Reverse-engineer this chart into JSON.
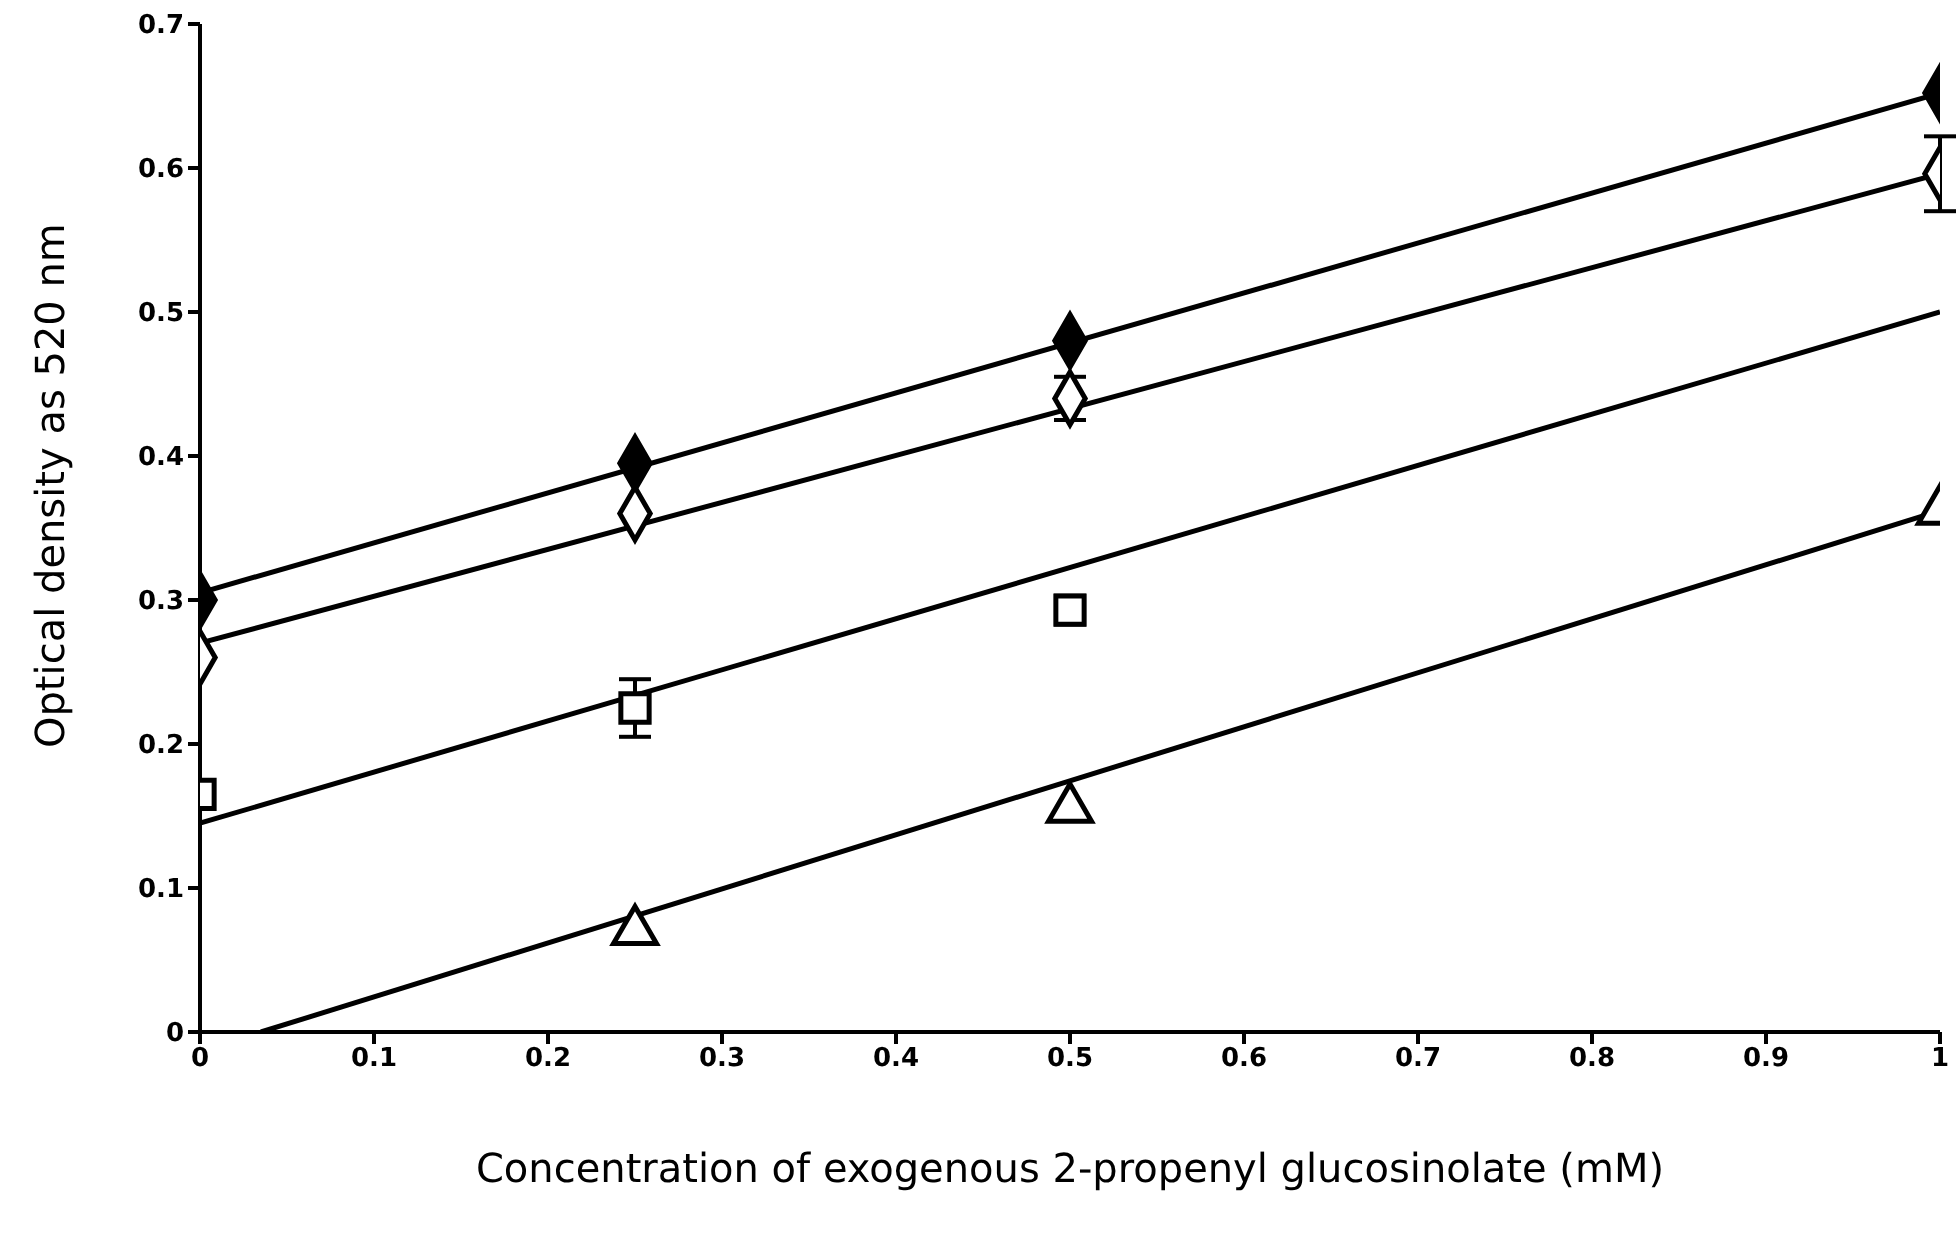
{
  "chart_data": {
    "type": "scatter",
    "xlabel": "Concentration of exogenous 2-propenyl glucosinolate (mM)",
    "ylabel": "Optical density as 520 nm",
    "xlim": [
      0,
      1
    ],
    "ylim": [
      0,
      0.7
    ],
    "xticks": [
      0,
      0.1,
      0.2,
      0.3,
      0.4,
      0.5,
      0.6,
      0.7,
      0.8,
      0.9,
      1
    ],
    "yticks": [
      0,
      0.1,
      0.2,
      0.3,
      0.4,
      0.5,
      0.6,
      0.7
    ],
    "grid": false,
    "legend": false,
    "series": [
      {
        "marker": "diamond",
        "color": "#000000",
        "x": [
          0,
          0.25,
          0.5,
          1
        ],
        "values": [
          0.3,
          0.395,
          0.48,
          0.652
        ]
      },
      {
        "marker": "diamond",
        "color": "#000000",
        "x": [
          0,
          0.25,
          0.5,
          1
        ],
        "values": [
          0.26,
          0.36,
          0.44,
          0.596
        ],
        "errors": [
          null,
          null,
          0.015,
          0.026
        ]
      },
      {
        "marker": "square",
        "color": "#000000",
        "x": [
          0,
          0.25,
          0.5
        ],
        "values": [
          0.165,
          0.225,
          0.293
        ],
        "errors": [
          null,
          0.02,
          0.01
        ]
      },
      {
        "marker": "triangle",
        "color": "#000000",
        "x": [
          0.25,
          0.5,
          1
        ],
        "values": [
          0.07,
          0.155,
          0.362
        ],
        "errors": [
          null,
          null,
          null
        ]
      },
      {
        "type": "line",
        "color": "#000000",
        "x": [
          0,
          1
        ],
        "values": [
          0.305,
          0.652
        ]
      },
      {
        "type": "line",
        "color": "#000000",
        "x": [
          0,
          1
        ],
        "values": [
          0.27,
          0.596
        ]
      },
      {
        "type": "line",
        "color": "#000000",
        "x": [
          0,
          1
        ],
        "values": [
          0.145,
          0.5
        ]
      },
      {
        "type": "line",
        "color": "#000000",
        "x": [
          0.035,
          1
        ],
        "values": [
          0,
          0.362
        ]
      }
    ]
  }
}
